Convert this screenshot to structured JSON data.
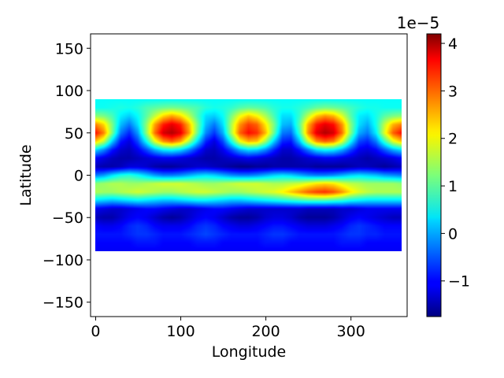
{
  "chart_data": {
    "type": "heatmap",
    "title": "",
    "xlabel": "Longitude",
    "ylabel": "Latitude",
    "xlim": [
      -6,
      366
    ],
    "ylim": [
      -167,
      167
    ],
    "x_ticks": [
      0,
      100,
      200,
      300
    ],
    "x_tick_labels": [
      "0",
      "100",
      "200",
      "300"
    ],
    "y_ticks": [
      150,
      100,
      50,
      0,
      -50,
      -100,
      -150
    ],
    "y_tick_labels": [
      "150",
      "100",
      "50",
      "0",
      "−50",
      "−100",
      "−150"
    ],
    "data_extent": {
      "lon": [
        0,
        360
      ],
      "lat": [
        -90,
        90
      ]
    },
    "colormap": "jet",
    "colorbar": {
      "range": [
        -1.75,
        4.2
      ],
      "ticks": [
        -1,
        0,
        1,
        2,
        3,
        4
      ],
      "tick_labels": [
        "−1",
        "0",
        "1",
        "2",
        "3",
        "4"
      ],
      "offset_label": "1e−5"
    },
    "field": {
      "lon_step": 10,
      "lat_step": 10,
      "lon": [
        0,
        10,
        20,
        30,
        40,
        50,
        60,
        70,
        80,
        90,
        100,
        110,
        120,
        130,
        140,
        150,
        160,
        170,
        180,
        190,
        200,
        210,
        220,
        230,
        240,
        250,
        260,
        270,
        280,
        290,
        300,
        310,
        320,
        330,
        340,
        350,
        360
      ],
      "lat": [
        90,
        80,
        70,
        60,
        50,
        40,
        30,
        20,
        10,
        0,
        -10,
        -20,
        -30,
        -40,
        -50,
        -60,
        -70,
        -80,
        -90
      ],
      "values": [
        [
          0.5,
          0.5,
          0.5,
          0.5,
          0.5,
          0.5,
          0.5,
          0.5,
          0.5,
          0.5,
          0.5,
          0.5,
          0.5,
          0.5,
          0.5,
          0.5,
          0.5,
          0.5,
          0.5,
          0.5,
          0.5,
          0.5,
          0.5,
          0.5,
          0.5,
          0.5,
          0.5,
          0.5,
          0.5,
          0.5,
          0.5,
          0.5,
          0.5,
          0.5,
          0.5,
          0.5,
          0.5
        ],
        [
          0.55,
          0.55,
          0.6,
          0.65,
          0.6,
          0.7,
          0.9,
          1.0,
          1.1,
          1.15,
          1.1,
          1.0,
          0.9,
          0.7,
          0.6,
          0.65,
          0.75,
          0.95,
          1.05,
          1.0,
          0.9,
          0.7,
          0.6,
          0.6,
          0.7,
          0.85,
          1.05,
          1.15,
          1.1,
          1.0,
          0.85,
          0.7,
          0.6,
          0.6,
          0.55,
          0.55,
          0.55
        ],
        [
          1.3,
          1.2,
          0.9,
          0.4,
          0.2,
          0.5,
          1.0,
          1.6,
          2.2,
          2.5,
          2.2,
          1.6,
          0.9,
          0.3,
          0.2,
          0.5,
          1.2,
          1.9,
          2.3,
          2.0,
          1.5,
          0.9,
          0.3,
          0.3,
          0.8,
          1.6,
          2.3,
          2.6,
          2.4,
          1.8,
          1.0,
          0.4,
          0.3,
          0.6,
          1.0,
          1.2,
          1.3
        ],
        [
          2.7,
          2.2,
          1.2,
          0.1,
          -0.3,
          0.3,
          1.3,
          2.5,
          3.3,
          3.6,
          3.3,
          2.4,
          1.2,
          0.1,
          -0.3,
          0.3,
          1.5,
          2.6,
          3.1,
          2.9,
          2.1,
          1.2,
          0.1,
          0.0,
          1.0,
          2.4,
          3.3,
          3.6,
          3.4,
          2.6,
          1.3,
          0.3,
          0.0,
          0.6,
          1.6,
          2.4,
          2.7
        ],
        [
          3.4,
          2.7,
          1.2,
          -0.3,
          -0.8,
          -0.1,
          1.3,
          2.8,
          3.7,
          3.9,
          3.6,
          2.6,
          1.1,
          -0.2,
          -0.7,
          0.0,
          1.5,
          2.9,
          3.4,
          3.2,
          2.4,
          1.1,
          -0.3,
          -0.4,
          0.8,
          2.6,
          3.6,
          3.9,
          3.7,
          2.8,
          1.3,
          0.0,
          -0.3,
          0.4,
          1.8,
          2.9,
          3.4
        ],
        [
          2.3,
          1.6,
          0.2,
          -0.9,
          -1.2,
          -0.6,
          0.5,
          1.8,
          2.6,
          2.9,
          2.5,
          1.5,
          0.3,
          -0.8,
          -1.2,
          -0.6,
          0.6,
          1.9,
          2.4,
          2.3,
          1.4,
          0.2,
          -0.8,
          -0.9,
          0.1,
          1.6,
          2.6,
          2.9,
          2.7,
          1.8,
          0.5,
          -0.6,
          -0.8,
          -0.3,
          0.8,
          1.8,
          2.3
        ],
        [
          0.3,
          -0.2,
          -0.9,
          -1.3,
          -1.4,
          -1.1,
          -0.6,
          0.0,
          0.4,
          0.5,
          0.3,
          -0.2,
          -0.8,
          -1.3,
          -1.4,
          -1.1,
          -0.6,
          0.0,
          0.3,
          0.2,
          -0.2,
          -0.8,
          -1.3,
          -1.3,
          -0.9,
          -0.3,
          0.3,
          0.5,
          0.4,
          0.0,
          -0.6,
          -1.1,
          -1.2,
          -1.0,
          -0.5,
          0.0,
          0.3
        ],
        [
          -1.0,
          -1.2,
          -1.4,
          -1.5,
          -1.5,
          -1.4,
          -1.3,
          -1.2,
          -1.1,
          -1.1,
          -1.2,
          -1.3,
          -1.4,
          -1.5,
          -1.5,
          -1.4,
          -1.3,
          -1.2,
          -1.1,
          -1.2,
          -1.3,
          -1.4,
          -1.5,
          -1.5,
          -1.4,
          -1.3,
          -1.2,
          -1.1,
          -1.1,
          -1.2,
          -1.3,
          -1.4,
          -1.5,
          -1.4,
          -1.3,
          -1.2,
          -1.0
        ],
        [
          -1.4,
          -1.5,
          -1.5,
          -1.4,
          -1.2,
          -1.2,
          -1.3,
          -1.5,
          -1.6,
          -1.6,
          -1.5,
          -1.4,
          -1.3,
          -1.3,
          -1.4,
          -1.5,
          -1.6,
          -1.7,
          -1.7,
          -1.6,
          -1.6,
          -1.5,
          -1.5,
          -1.5,
          -1.5,
          -1.5,
          -1.6,
          -1.6,
          -1.6,
          -1.6,
          -1.5,
          -1.4,
          -1.4,
          -1.5,
          -1.6,
          -1.5,
          -1.4
        ],
        [
          -0.3,
          -0.1,
          0.3,
          0.6,
          0.7,
          0.5,
          0.2,
          -0.1,
          -0.3,
          -0.3,
          -0.2,
          0.0,
          0.2,
          0.3,
          0.2,
          0.0,
          -0.2,
          -0.3,
          -0.3,
          -0.2,
          0.0,
          0.2,
          0.3,
          0.2,
          0.0,
          -0.2,
          -0.3,
          -0.3,
          -0.2,
          0.0,
          0.2,
          0.3,
          0.2,
          0.1,
          -0.1,
          -0.2,
          -0.3
        ],
        [
          1.3,
          1.4,
          1.5,
          1.5,
          1.4,
          1.4,
          1.5,
          1.6,
          1.7,
          1.7,
          1.7,
          1.6,
          1.5,
          1.4,
          1.4,
          1.5,
          1.6,
          1.7,
          1.7,
          1.7,
          1.6,
          1.5,
          1.5,
          1.6,
          1.7,
          1.9,
          2.1,
          2.2,
          2.1,
          1.8,
          1.6,
          1.5,
          1.4,
          1.4,
          1.4,
          1.4,
          1.3
        ],
        [
          1.5,
          1.4,
          1.4,
          1.5,
          1.6,
          1.7,
          1.6,
          1.5,
          1.4,
          1.4,
          1.5,
          1.6,
          1.7,
          1.7,
          1.6,
          1.5,
          1.4,
          1.4,
          1.5,
          1.6,
          1.7,
          1.8,
          2.0,
          2.3,
          2.6,
          2.9,
          3.1,
          3.2,
          3.0,
          2.6,
          2.1,
          1.8,
          1.6,
          1.5,
          1.5,
          1.5,
          1.5
        ],
        [
          0.3,
          0.2,
          0.1,
          0.2,
          0.3,
          0.4,
          0.3,
          0.2,
          0.1,
          0.1,
          0.2,
          0.3,
          0.4,
          0.4,
          0.3,
          0.2,
          0.1,
          0.1,
          0.2,
          0.3,
          0.4,
          0.5,
          0.6,
          0.7,
          0.8,
          0.9,
          0.9,
          0.9,
          0.8,
          0.7,
          0.5,
          0.4,
          0.3,
          0.3,
          0.3,
          0.3,
          0.3
        ],
        [
          -1.1,
          -1.2,
          -1.3,
          -1.3,
          -1.2,
          -1.1,
          -1.0,
          -1.0,
          -1.1,
          -1.2,
          -1.3,
          -1.3,
          -1.2,
          -1.1,
          -1.0,
          -1.0,
          -1.1,
          -1.2,
          -1.3,
          -1.3,
          -1.3,
          -1.3,
          -1.3,
          -1.3,
          -1.3,
          -1.4,
          -1.4,
          -1.4,
          -1.4,
          -1.3,
          -1.3,
          -1.2,
          -1.1,
          -1.1,
          -1.1,
          -1.1,
          -1.1
        ],
        [
          -1.4,
          -1.5,
          -1.5,
          -1.3,
          -1.1,
          -1.0,
          -1.1,
          -1.3,
          -1.5,
          -1.6,
          -1.5,
          -1.3,
          -1.1,
          -1.0,
          -1.1,
          -1.3,
          -1.5,
          -1.6,
          -1.6,
          -1.5,
          -1.3,
          -1.2,
          -1.2,
          -1.3,
          -1.5,
          -1.6,
          -1.6,
          -1.6,
          -1.5,
          -1.3,
          -1.1,
          -1.0,
          -1.1,
          -1.2,
          -1.3,
          -1.4,
          -1.4
        ],
        [
          -1.0,
          -1.1,
          -1.1,
          -1.0,
          -0.8,
          -0.7,
          -0.8,
          -1.0,
          -1.1,
          -1.1,
          -1.1,
          -1.0,
          -0.8,
          -0.7,
          -0.8,
          -1.0,
          -1.1,
          -1.2,
          -1.2,
          -1.1,
          -1.0,
          -0.9,
          -0.9,
          -1.0,
          -1.1,
          -1.2,
          -1.2,
          -1.2,
          -1.1,
          -1.0,
          -0.8,
          -0.7,
          -0.8,
          -0.9,
          -1.0,
          -1.0,
          -1.0
        ],
        [
          -0.9,
          -0.9,
          -0.9,
          -0.9,
          -0.8,
          -0.7,
          -0.7,
          -0.8,
          -0.9,
          -0.9,
          -0.9,
          -0.8,
          -0.7,
          -0.6,
          -0.7,
          -0.8,
          -0.9,
          -0.9,
          -0.9,
          -0.9,
          -0.8,
          -0.7,
          -0.7,
          -0.8,
          -0.9,
          -0.9,
          -0.9,
          -0.9,
          -0.9,
          -0.8,
          -0.7,
          -0.7,
          -0.8,
          -0.8,
          -0.9,
          -0.9,
          -0.9
        ],
        [
          -1.0,
          -1.0,
          -1.0,
          -1.0,
          -1.0,
          -0.9,
          -0.9,
          -0.9,
          -1.0,
          -1.0,
          -1.0,
          -1.0,
          -0.9,
          -0.9,
          -0.9,
          -1.0,
          -1.0,
          -1.0,
          -1.0,
          -1.0,
          -0.9,
          -0.9,
          -0.9,
          -1.0,
          -1.0,
          -1.0,
          -1.0,
          -1.0,
          -1.0,
          -0.9,
          -0.9,
          -0.9,
          -1.0,
          -1.0,
          -1.0,
          -1.0,
          -1.0
        ],
        [
          -1.05,
          -1.05,
          -1.05,
          -1.05,
          -1.05,
          -1.05,
          -1.05,
          -1.05,
          -1.05,
          -1.05,
          -1.05,
          -1.05,
          -1.05,
          -1.05,
          -1.05,
          -1.05,
          -1.05,
          -1.05,
          -1.05,
          -1.05,
          -1.05,
          -1.05,
          -1.05,
          -1.05,
          -1.05,
          -1.05,
          -1.05,
          -1.05,
          -1.05,
          -1.05,
          -1.05,
          -1.05,
          -1.05,
          -1.05,
          -1.05,
          -1.05,
          -1.05
        ]
      ]
    }
  }
}
